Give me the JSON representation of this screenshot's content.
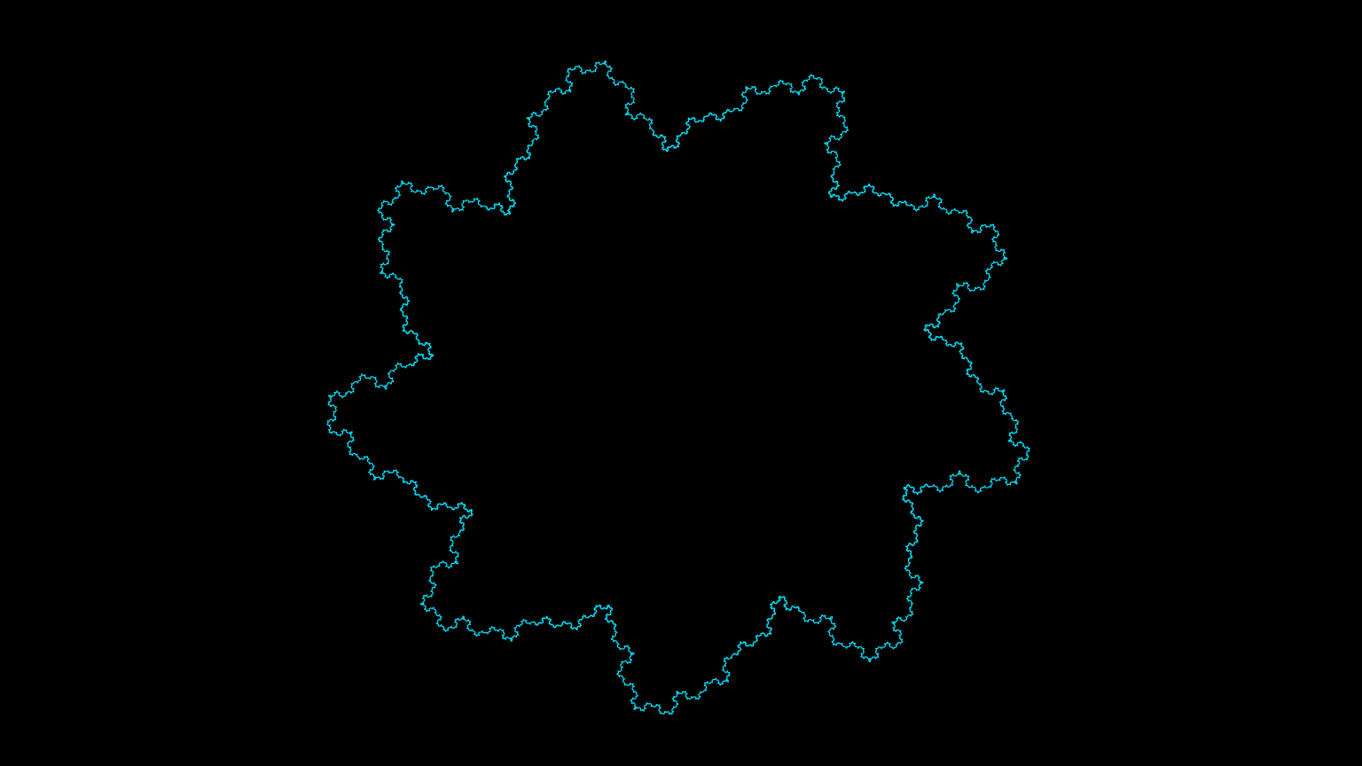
{
  "canvas": {
    "background_color": "#000000"
  },
  "fractal": {
    "type": "flowsnake-ring",
    "stroke_color": "#00e5ff",
    "arms": 9,
    "recursion_depth": 4
  }
}
